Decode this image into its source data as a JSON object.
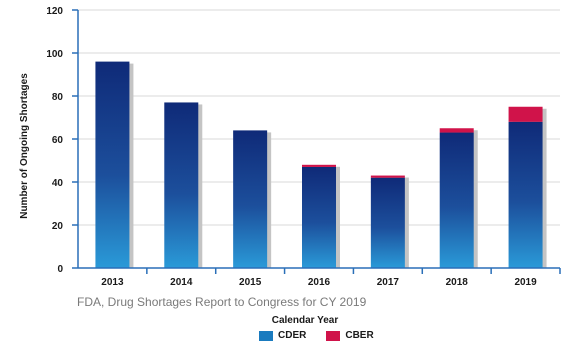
{
  "chart_data": {
    "type": "bar",
    "stacked": true,
    "categories": [
      "2013",
      "2014",
      "2015",
      "2016",
      "2017",
      "2018",
      "2019"
    ],
    "series": [
      {
        "name": "CDER",
        "values": [
          96,
          77,
          64,
          47,
          42,
          63,
          68
        ],
        "color": "#1c4f9c"
      },
      {
        "name": "CBER",
        "values": [
          0,
          0,
          0,
          1,
          1,
          2,
          7
        ],
        "color": "#d0134a"
      }
    ],
    "xlabel": "Calendar Year",
    "ylabel": "Number of Ongoing Shortages",
    "ylim": [
      0,
      120
    ],
    "yticks": [
      0,
      20,
      40,
      60,
      80,
      100,
      120
    ],
    "grid": true,
    "legend_position": "bottom"
  },
  "source_note": "FDA, Drug Shortages Report to Congress for CY 2019",
  "colors": {
    "axis": "#2a6fb8",
    "grid": "#d9d9d9",
    "shadow": "#c4c4c4",
    "cder_light": "#2a9ad8"
  }
}
